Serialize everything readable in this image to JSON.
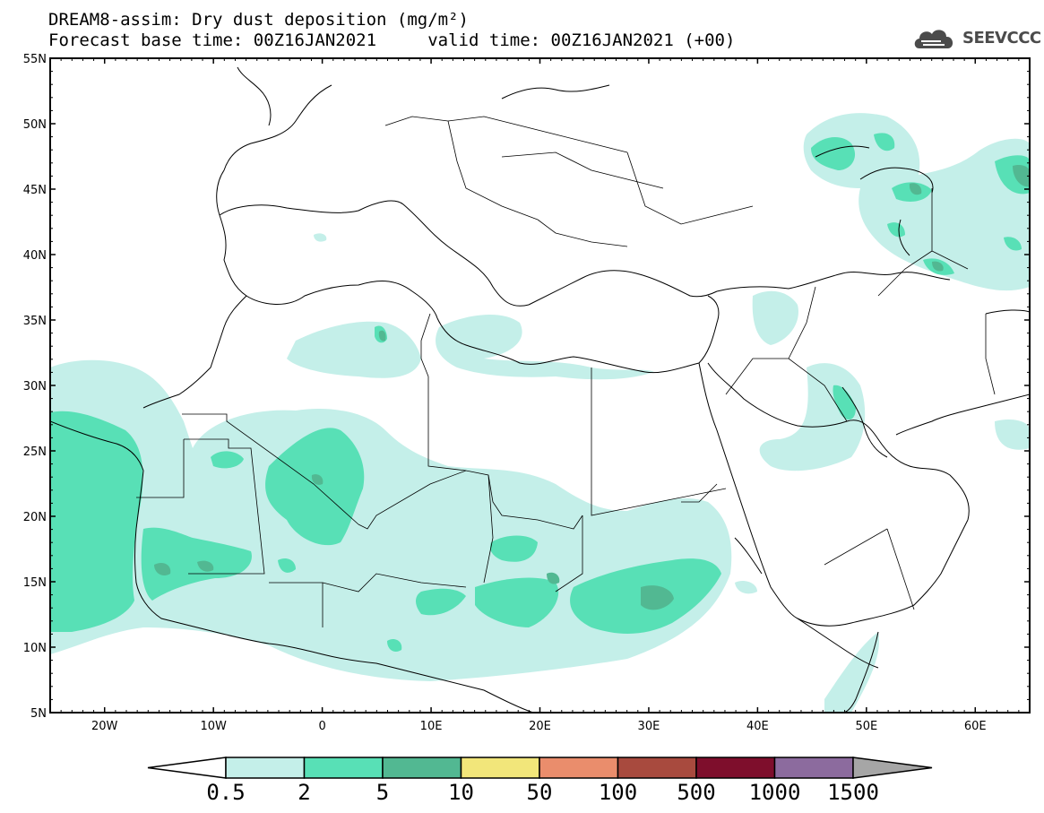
{
  "header": {
    "title_line1": "DREAM8-assim: Dry dust deposition (mg/m²)",
    "title_line2": "Forecast base time: 00Z16JAN2021     valid time: 00Z16JAN2021 (+00)"
  },
  "logo": {
    "text": "SEEVCCC",
    "icon": "cloud-icon"
  },
  "map": {
    "lat_labels": [
      "55N",
      "50N",
      "45N",
      "40N",
      "35N",
      "30N",
      "25N",
      "20N",
      "15N",
      "10N",
      "5N"
    ],
    "lon_labels": [
      "20W",
      "10W",
      "0",
      "10E",
      "20E",
      "30E",
      "40E",
      "50E",
      "60E"
    ],
    "lon_range": [
      -25,
      65
    ],
    "lat_range": [
      5,
      55
    ]
  },
  "colorbar": {
    "labels": [
      "0.5",
      "2",
      "5",
      "10",
      "50",
      "100",
      "500",
      "1000",
      "1500"
    ],
    "colors": [
      "#ffffff",
      "#c4efe9",
      "#58e0b6",
      "#52b892",
      "#f2e67a",
      "#ea8d6c",
      "#a84a3e",
      "#7e0e2c",
      "#8c6b9e",
      "#a6a6a6"
    ]
  }
}
